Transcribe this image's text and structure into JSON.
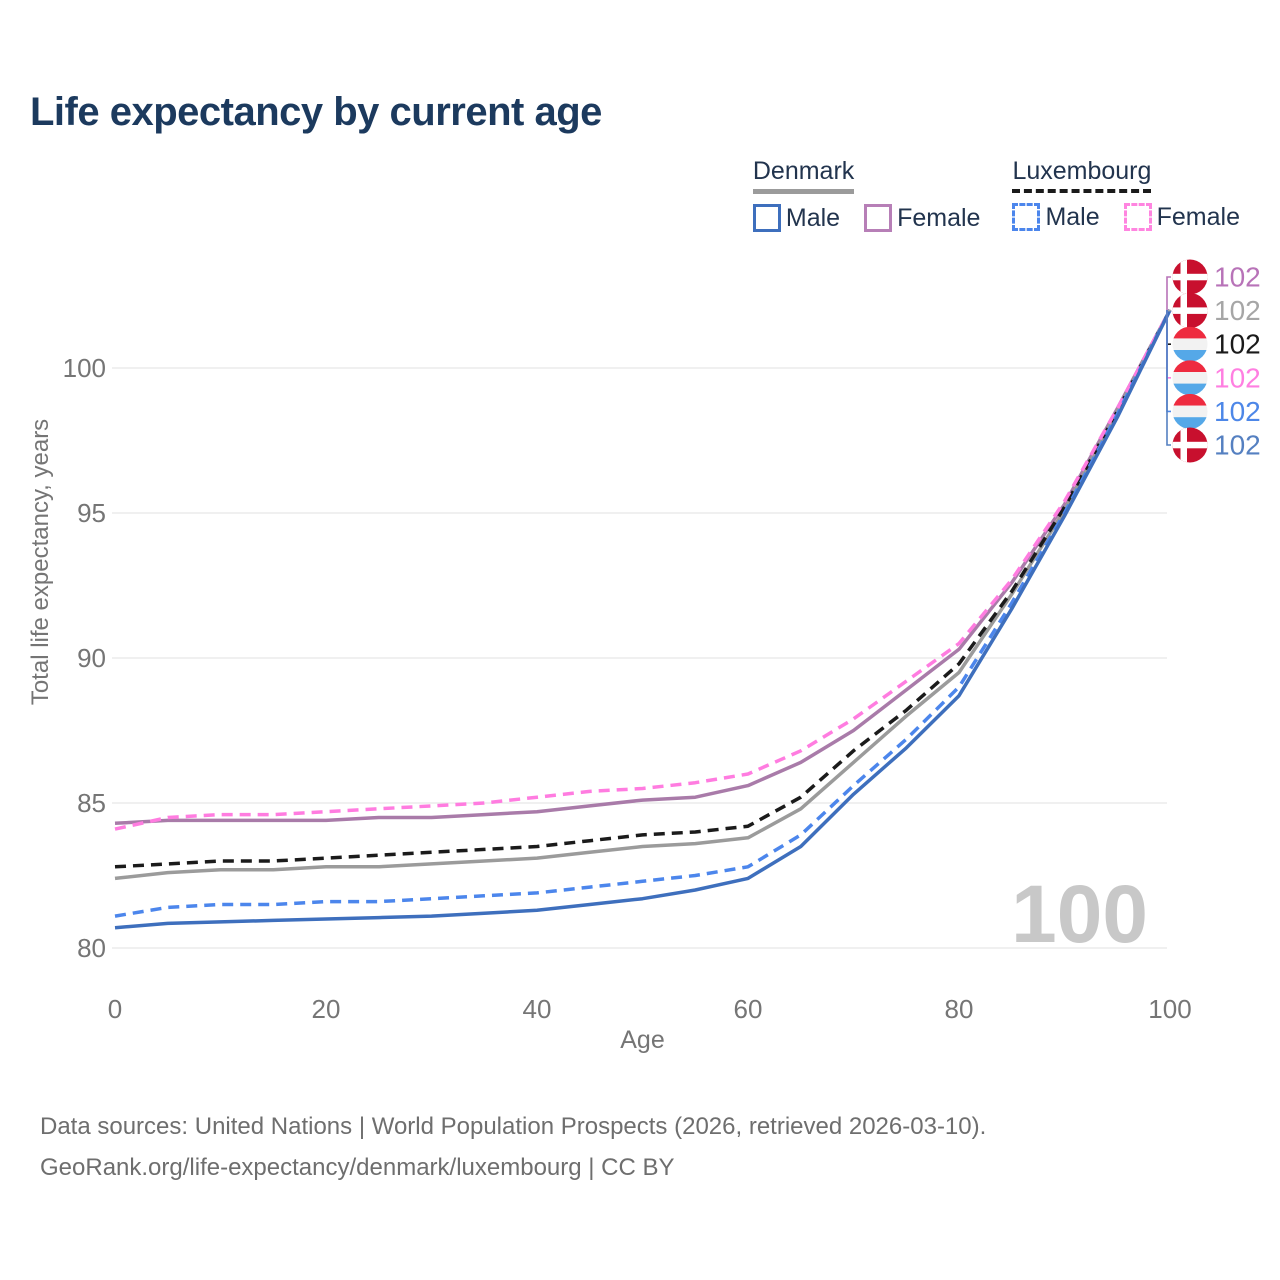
{
  "title": "Life expectancy by current age",
  "watermark_age": "100",
  "legend": {
    "groups": [
      {
        "country": "Denmark",
        "underline": {
          "style": "solid",
          "color": "#9b9b9b"
        },
        "items": [
          {
            "label": "Male",
            "color": "#3e6fbd",
            "dash": false
          },
          {
            "label": "Female",
            "color": "#b77fb7",
            "dash": false
          }
        ]
      },
      {
        "country": "Luxembourg",
        "underline": {
          "style": "dashed",
          "color": "#1b1b1b"
        },
        "items": [
          {
            "label": "Male",
            "color": "#4c86ec",
            "dash": true
          },
          {
            "label": "Female",
            "color": "#ff85e0",
            "dash": true
          }
        ]
      }
    ]
  },
  "chart_data": {
    "type": "line",
    "title": "Life expectancy by current age",
    "xlabel": "Age",
    "ylabel": "Total life expectancy, years",
    "x_ticks": [
      "0",
      "20",
      "40",
      "60",
      "80",
      "100"
    ],
    "x_tick_values": [
      0,
      20,
      40,
      60,
      80,
      100
    ],
    "y_ticks": [
      "80",
      "85",
      "90",
      "95",
      "100"
    ],
    "y_tick_values": [
      80,
      85,
      90,
      95,
      100
    ],
    "xlim": [
      0,
      100
    ],
    "ylim": [
      80,
      102
    ],
    "grid": "horizontal-only",
    "legend_position": "top-right",
    "x": [
      0,
      5,
      10,
      15,
      20,
      25,
      30,
      35,
      40,
      45,
      50,
      55,
      60,
      65,
      70,
      75,
      80,
      85,
      90,
      95,
      100
    ],
    "series": [
      {
        "name": "Denmark Female",
        "country": "Denmark",
        "sex": "Female",
        "line_style": "solid",
        "color": "#a97ba9",
        "label_color": "#b873b8",
        "flag": "denmark",
        "end_label": "102",
        "values": [
          84.3,
          84.4,
          84.4,
          84.4,
          84.4,
          84.5,
          84.5,
          84.6,
          84.7,
          84.9,
          85.1,
          85.2,
          85.6,
          86.4,
          87.5,
          88.9,
          90.3,
          92.6,
          95.3,
          98.6,
          102
        ]
      },
      {
        "name": "Denmark Total",
        "country": "Denmark",
        "sex": "Both",
        "line_style": "solid",
        "color": "#9b9b9b",
        "label_color": "#a6a6a6",
        "flag": "denmark",
        "end_label": "102",
        "values": [
          82.4,
          82.6,
          82.7,
          82.7,
          82.8,
          82.8,
          82.9,
          83.0,
          83.1,
          83.3,
          83.5,
          83.6,
          83.8,
          84.8,
          86.4,
          88.0,
          89.5,
          92.2,
          95.1,
          98.5,
          102
        ]
      },
      {
        "name": "Luxembourg Total",
        "country": "Luxembourg",
        "sex": "Both",
        "line_style": "dashed",
        "color": "#1b1b1b",
        "label_color": "#1a1a1a",
        "flag": "luxembourg",
        "end_label": "102",
        "values": [
          82.8,
          82.9,
          83.0,
          83.0,
          83.1,
          83.2,
          83.3,
          83.4,
          83.5,
          83.7,
          83.9,
          84.0,
          84.2,
          85.2,
          86.8,
          88.2,
          89.8,
          92.3,
          95.2,
          98.5,
          102
        ]
      },
      {
        "name": "Luxembourg Female",
        "country": "Luxembourg",
        "sex": "Female",
        "line_style": "dashed",
        "color": "#ff7ce0",
        "label_color": "#ff7fe1",
        "flag": "luxembourg",
        "end_label": "102",
        "values": [
          84.1,
          84.5,
          84.6,
          84.6,
          84.7,
          84.8,
          84.9,
          85.0,
          85.2,
          85.4,
          85.5,
          85.7,
          86.0,
          86.8,
          87.9,
          89.2,
          90.5,
          92.7,
          95.4,
          98.6,
          102
        ]
      },
      {
        "name": "Luxembourg Male",
        "country": "Luxembourg",
        "sex": "Male",
        "line_style": "dashed",
        "color": "#4c86ec",
        "label_color": "#4d87e8",
        "flag": "luxembourg",
        "end_label": "102",
        "values": [
          81.1,
          81.4,
          81.5,
          81.5,
          81.6,
          81.6,
          81.7,
          81.8,
          81.9,
          82.1,
          82.3,
          82.5,
          82.8,
          83.9,
          85.6,
          87.2,
          89.0,
          91.9,
          95.0,
          98.4,
          102
        ]
      },
      {
        "name": "Denmark Male",
        "country": "Denmark",
        "sex": "Male",
        "line_style": "solid",
        "color": "#3e6fbd",
        "label_color": "#5580c1",
        "flag": "denmark",
        "end_label": "102",
        "values": [
          80.7,
          80.85,
          80.9,
          80.95,
          81.0,
          81.05,
          81.1,
          81.2,
          81.3,
          81.5,
          81.7,
          82.0,
          82.4,
          83.5,
          85.3,
          86.9,
          88.7,
          91.7,
          94.9,
          98.3,
          102
        ]
      }
    ]
  },
  "flags": {
    "denmark": {
      "red": "#c8102e",
      "cross": "#ffffff"
    },
    "luxembourg": {
      "red": "#ee2b3f",
      "white": "#f2f2f2",
      "blue": "#55a8e8"
    }
  },
  "colors": {
    "title": "#1c3a5e",
    "axis_text": "#757575",
    "gridline": "#ececec",
    "watermark": "#c8c8c8"
  },
  "footer": {
    "line1": "Data sources: United Nations | World Population Prospects (2026, retrieved 2026-03-10).",
    "line2": "GeoRank.org/life-expectancy/denmark/luxembourg | CC BY"
  }
}
